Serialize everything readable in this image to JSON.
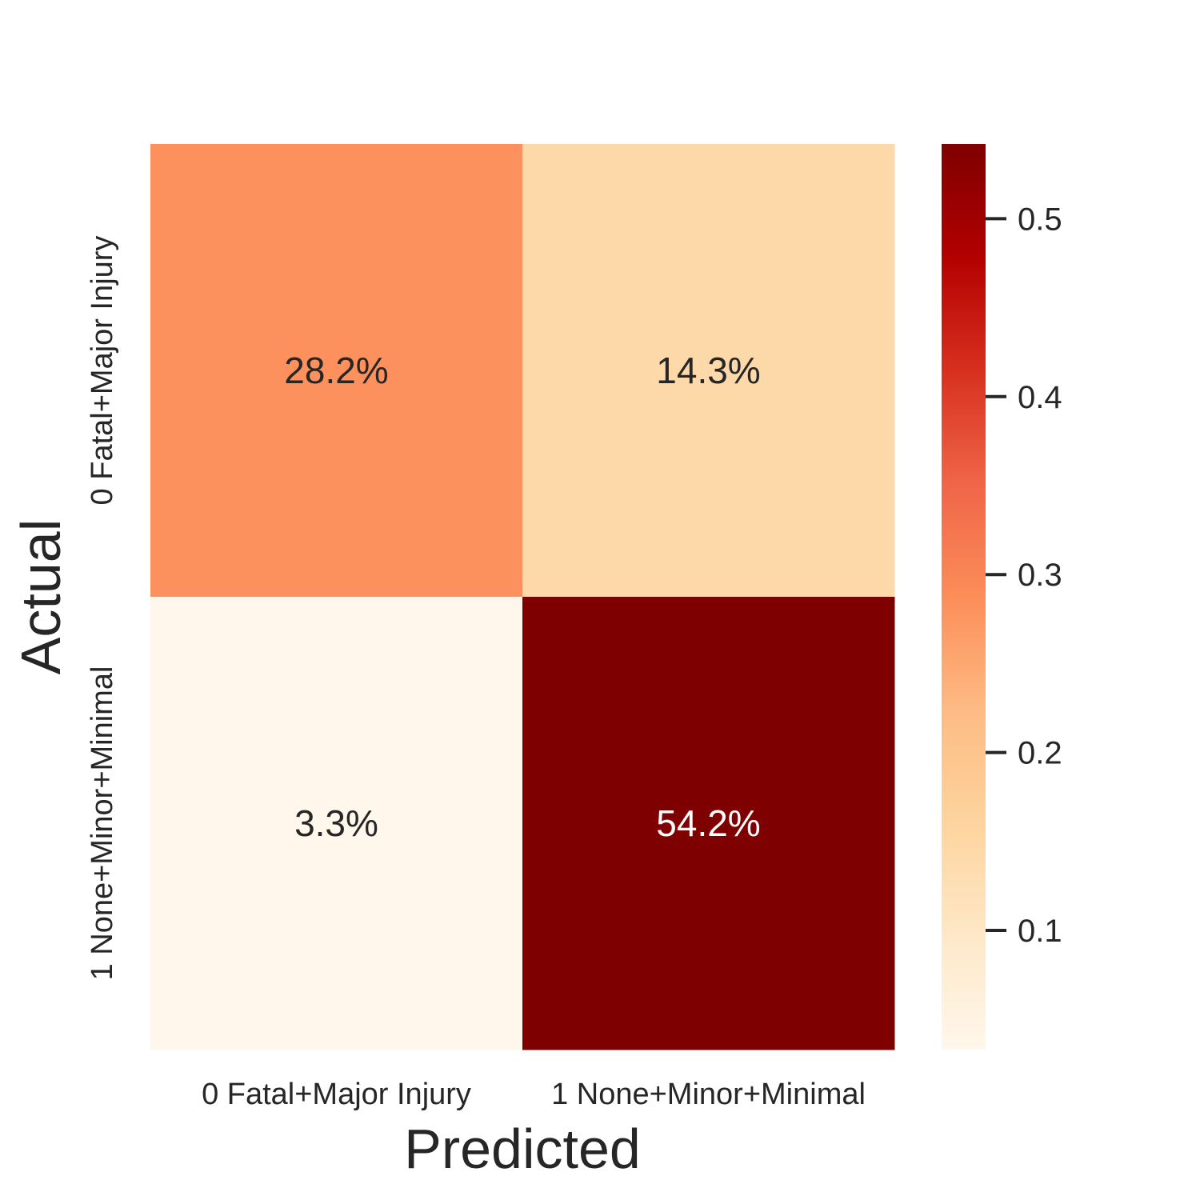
{
  "chart_data": {
    "type": "heatmap",
    "title": "",
    "xlabel": "Predicted",
    "ylabel": "Actual",
    "x_categories": [
      "0 Fatal+Major Injury",
      "1 None+Minor+Minimal"
    ],
    "y_categories": [
      "0 Fatal+Major Injury",
      "1 None+Minor+Minimal"
    ],
    "values": [
      [
        0.282,
        0.143
      ],
      [
        0.033,
        0.542
      ]
    ],
    "annotations": [
      [
        "28.2%",
        "14.3%"
      ],
      [
        "3.3%",
        "54.2%"
      ]
    ],
    "colorbar": {
      "colormap": "OrRd",
      "vmin": 0.033,
      "vmax": 0.542,
      "ticks": [
        0.1,
        0.2,
        0.3,
        0.4,
        0.5
      ],
      "tick_labels": [
        "0.1",
        "0.2",
        "0.3",
        "0.4",
        "0.5"
      ]
    },
    "grid": false
  }
}
